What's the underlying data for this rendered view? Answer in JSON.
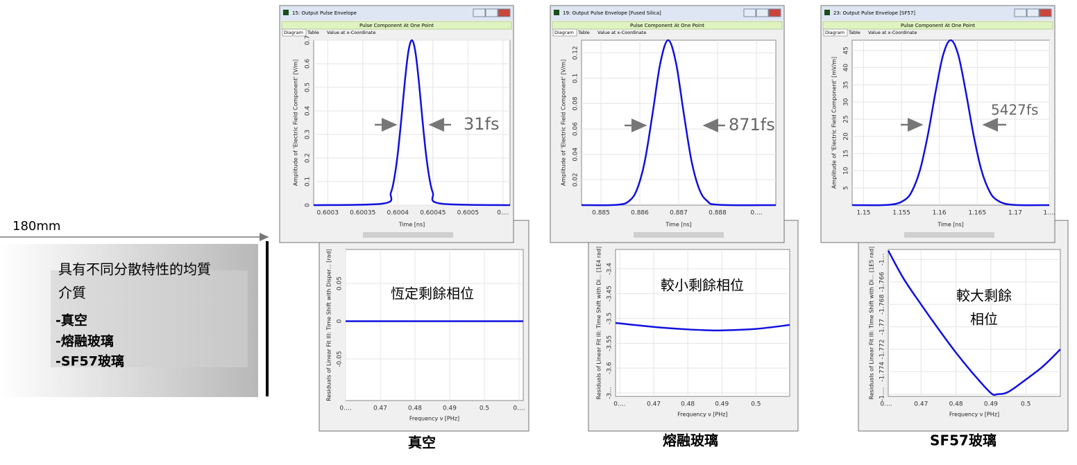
{
  "chart_data": [
    {
      "type": "line",
      "title": "15: Output Pulse Envelope",
      "header": "Pulse Component At One Point",
      "tabs": [
        "Diagram",
        "Table",
        "Value at x-Coordinate"
      ],
      "xlabel": "Time [ns]",
      "ylabel": "Amplitude of 'Electric Field Component' [V/m]",
      "annotation": [
        "31fs"
      ],
      "color": "#1010e0",
      "xlim": [
        0.60028,
        0.60056
      ],
      "ylim": [
        0,
        0.7
      ],
      "xticks": [
        0.6003,
        0.60035,
        0.6004,
        0.60045,
        0.6005,
        {
          "value": 0.60055,
          "label": "0...."
        }
      ],
      "yticks": [
        0,
        0.1,
        0.2,
        0.3,
        0.4,
        0.5,
        0.6,
        0.7
      ],
      "x": [
        0.60028,
        0.60038,
        0.60039,
        0.600395,
        0.6004,
        0.600405,
        0.60041,
        0.600415,
        0.60042,
        0.600425,
        0.60043,
        0.600435,
        0.60044,
        0.600445,
        0.60045,
        0.60046,
        0.60056
      ],
      "values": [
        0,
        0.007,
        0.052,
        0.115,
        0.221,
        0.365,
        0.524,
        0.651,
        0.7,
        0.651,
        0.524,
        0.365,
        0.221,
        0.115,
        0.052,
        0.007,
        0
      ]
    },
    {
      "type": "line",
      "title": "19: Output Pulse Envelope [Fused Silica]",
      "header": "Pulse Component At One Point",
      "tabs": [
        "Diagram",
        "Table",
        "Value at x-Coordinate"
      ],
      "xlabel": "Time [ns]",
      "ylabel": "Amplitude of 'Electric Field Component' [V/m]",
      "annotation": [
        "871fs"
      ],
      "color": "#1010e0",
      "xlim": [
        0.8845,
        0.8895
      ],
      "ylim": [
        0,
        0.13
      ],
      "xticks": [
        0.885,
        0.886,
        0.887,
        0.888,
        {
          "value": 0.889,
          "label": "0...."
        }
      ],
      "yticks": [
        0.02,
        0.04,
        0.06,
        0.08,
        0.1,
        0.12
      ],
      "x": [
        0.8845,
        0.88543,
        0.88573,
        0.88593,
        0.88613,
        0.88633,
        0.88653,
        0.88673,
        0.88693,
        0.88713,
        0.88733,
        0.88753,
        0.88773,
        0.88803,
        0.8895
      ],
      "values": [
        0,
        0.0003,
        0.0034,
        0.0126,
        0.0349,
        0.0725,
        0.1123,
        0.13,
        0.1123,
        0.0725,
        0.0349,
        0.0126,
        0.0034,
        0.0003,
        0
      ]
    },
    {
      "type": "line",
      "title": "23: Output Pulse Envelope [SF57]",
      "header": "Pulse Component At One Point",
      "tabs": [
        "Diagram",
        "Table",
        "Value at x-Coordinate"
      ],
      "xlabel": "Time [ns]",
      "ylabel": "Amplitude of 'Electric Field Component' [mV/m]",
      "annotation": [
        "5427fs"
      ],
      "color": "#1010e0",
      "xlim": [
        1.1485,
        1.1745
      ],
      "ylim": [
        0,
        48
      ],
      "xticks": [
        1.15,
        1.155,
        1.16,
        1.165,
        1.17,
        {
          "value": 1.1745,
          "label": "1...."
        }
      ],
      "yticks": [
        5,
        10,
        15,
        20,
        25,
        30,
        35,
        40,
        45
      ],
      "x": [
        1.1485,
        1.1535,
        1.1555,
        1.1565,
        1.1575,
        1.1585,
        1.1595,
        1.1605,
        1.1615,
        1.1625,
        1.1635,
        1.1645,
        1.1655,
        1.1665,
        1.1675,
        1.1695,
        1.1745
      ],
      "values": [
        0,
        0.12,
        1.62,
        4.56,
        10.6,
        20.6,
        32.9,
        43.7,
        48,
        43.7,
        32.9,
        20.6,
        10.6,
        4.56,
        1.62,
        0.12,
        0
      ]
    },
    {
      "type": "line",
      "xlabel": "Frequency ν [PHz]",
      "ylabel": "Residuals of Linear Fit III: Time Shift with Disper... [rad]",
      "annotation": [
        "恆定剩餘相位"
      ],
      "color": "#1010e0",
      "xlim": [
        0.46,
        0.5112
      ],
      "ylim": [
        -0.105,
        0.095
      ],
      "xticks": [
        {
          "value": 0.46,
          "label": "0...."
        },
        0.47,
        0.48,
        0.49,
        0.5,
        {
          "value": 0.51,
          "label": "0...."
        }
      ],
      "yticks": [
        -0.05,
        0,
        0.05
      ],
      "x": [
        0.46,
        0.5112
      ],
      "values": [
        0,
        0
      ]
    },
    {
      "type": "line",
      "xlabel": "Frequency ν [PHz]",
      "ylabel": "Residuals of Linear Fit III: Time Shift with Di... [1E4 rad]",
      "annotation": [
        "較小剩餘相位"
      ],
      "color": "#1010e0",
      "xlim": [
        0.4588,
        0.5099
      ],
      "ylim": [
        -3.657,
        -3.361
      ],
      "xticks": [
        {
          "value": 0.46,
          "label": "0...."
        },
        0.47,
        0.48,
        0.49,
        0.5
      ],
      "yticks": [
        -3.4,
        -3.45,
        -3.5,
        -3.55,
        -3.6,
        {
          "value": -3.65,
          "label": "-3..."
        }
      ],
      "x": [
        0.4588,
        0.47,
        0.48,
        0.487,
        0.49,
        0.5,
        0.5099
      ],
      "values": [
        -3.509,
        -3.517,
        -3.522,
        -3.524,
        -3.524,
        -3.521,
        -3.513
      ]
    },
    {
      "type": "line",
      "xlabel": "Frequency ν [PHz]",
      "ylabel": "Residuals of Linear Fit III: Time Shift with Di... [1E5 rad]",
      "annotation": [
        "較大剩餘",
        "相位"
      ],
      "color": "#1010e0",
      "xlim": [
        0.4606,
        0.5099
      ],
      "ylim": [
        -1.7762,
        -1.7631
      ],
      "xticks": [
        {
          "value": 0.46,
          "label": "0...."
        },
        0.47,
        0.48,
        0.49,
        0.5
      ],
      "yticks": [
        {
          "value": -1.764,
          "label": "-1..."
        },
        -1.766,
        -1.768,
        -1.77,
        -1.772,
        -1.774,
        {
          "value": -1.776,
          "label": "-1...."
        }
      ],
      "x": [
        0.4606,
        0.465,
        0.47,
        0.475,
        0.48,
        0.485,
        0.49,
        0.492,
        0.495,
        0.5,
        0.505,
        0.5099
      ],
      "values": [
        -1.7632,
        -1.7657,
        -1.768,
        -1.7702,
        -1.7723,
        -1.7742,
        -1.7759,
        -1.776,
        -1.7758,
        -1.7747,
        -1.7735,
        -1.772
      ]
    }
  ],
  "slide": {
    "distance": "180mm",
    "box_lines": [
      "具有不同分散特性的均質",
      "介質",
      "-真空",
      "-熔融玻璃",
      "-SF57玻璃"
    ],
    "captions": [
      "真空",
      "熔融玻璃",
      "SF57玻璃"
    ]
  }
}
